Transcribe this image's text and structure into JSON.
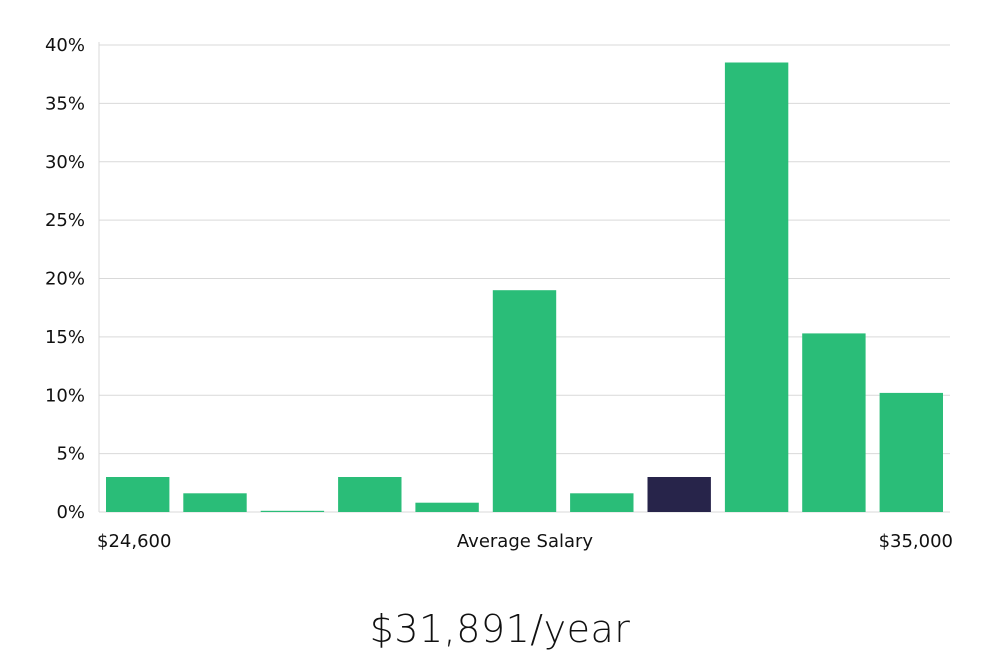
{
  "chart_data": {
    "type": "bar",
    "values": [
      3.0,
      1.6,
      0.1,
      3.0,
      0.8,
      19.0,
      1.6,
      3.0,
      38.5,
      15.3,
      10.2
    ],
    "highlight_index": 7,
    "ylim": [
      0,
      40
    ],
    "yticks": [
      "0%",
      "5%",
      "10%",
      "15%",
      "20%",
      "25%",
      "30%",
      "35%",
      "40%"
    ],
    "x_min_label": "$24,600",
    "x_center_label": "Average Salary",
    "x_max_label": "$35,000",
    "grid": true,
    "colors": {
      "bar": "#2abd78",
      "highlight": "#27244a",
      "grid": "#d9d9d9"
    }
  },
  "summary": {
    "salary": "$31,891/year"
  }
}
